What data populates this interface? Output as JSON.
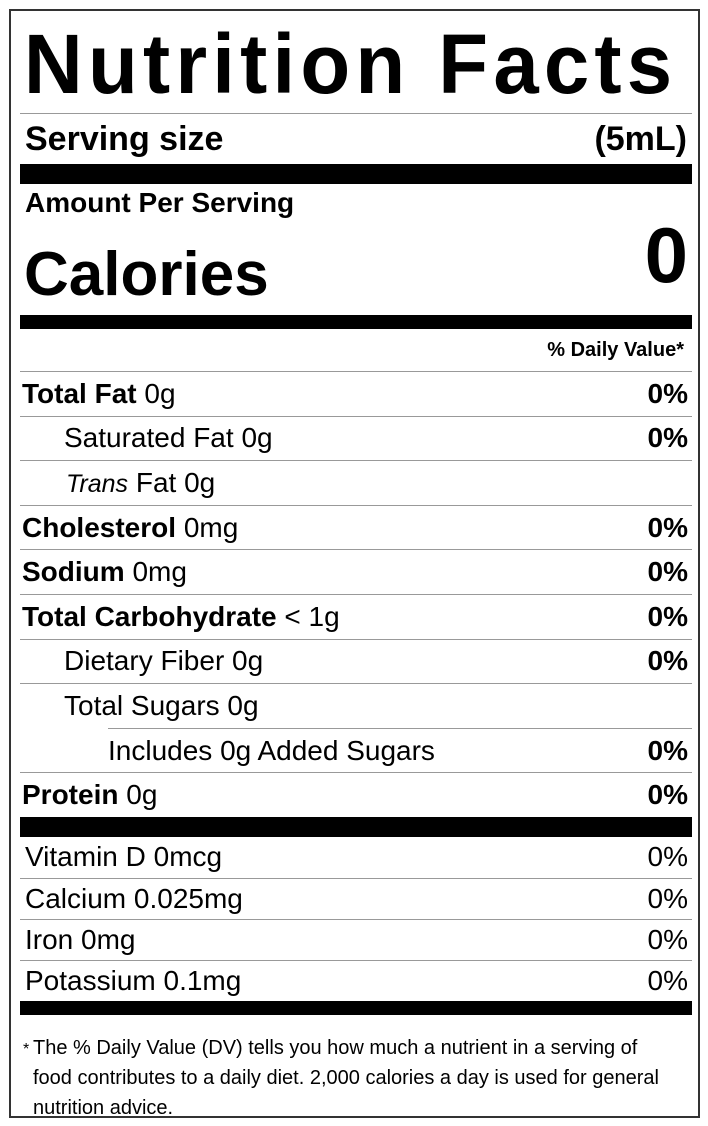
{
  "title": "Nutrition Facts",
  "serving": {
    "label": "Serving size",
    "value": "(5mL)"
  },
  "amount_per_serving": "Amount Per Serving",
  "calories": {
    "label": "Calories",
    "value": "0"
  },
  "dv_header": "% Daily Value*",
  "nutrients": [
    {
      "name": "Total Fat",
      "amount": "0g",
      "dv": "0%"
    },
    {
      "name": "Saturated Fat",
      "amount": "0g",
      "dv": "0%"
    },
    {
      "name_italic": "Trans",
      "name": "Fat",
      "amount": "0g",
      "dv": ""
    },
    {
      "name": "Cholesterol",
      "amount": "0mg",
      "dv": "0%"
    },
    {
      "name": "Sodium",
      "amount": "0mg",
      "dv": "0%"
    },
    {
      "name": "Total Carbohydrate",
      "amount": "< 1g",
      "dv": "0%"
    },
    {
      "name": "Dietary Fiber",
      "amount": "0g",
      "dv": "0%"
    },
    {
      "name": "Total Sugars",
      "amount": "0g",
      "dv": ""
    },
    {
      "text": "Includes 0g Added Sugars",
      "dv": "0%"
    },
    {
      "name": "Protein",
      "amount": "0g",
      "dv": "0%"
    }
  ],
  "vitamins": [
    {
      "text": "Vitamin D 0mcg",
      "dv": "0%"
    },
    {
      "text": "Calcium 0.025mg",
      "dv": "0%"
    },
    {
      "text": "Iron 0mg",
      "dv": "0%"
    },
    {
      "text": "Potassium 0.1mg",
      "dv": "0%"
    }
  ],
  "footnote": {
    "star": "*",
    "text": "The % Daily Value (DV) tells you how much a nutrient in a serving of food contributes to a daily diet. 2,000 calories a day is used for general nutrition advice."
  }
}
